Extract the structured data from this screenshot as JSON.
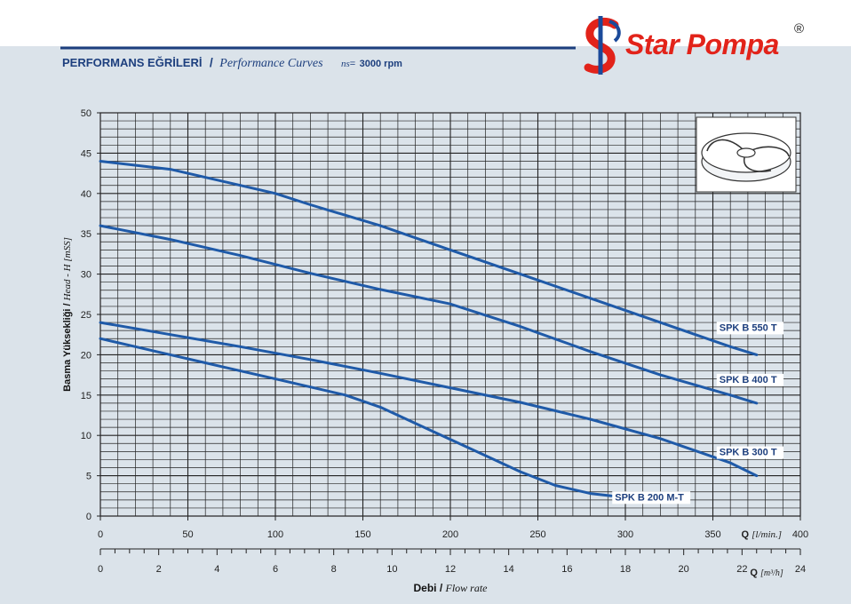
{
  "header": {
    "title_tr": "PERFORMANS EĞRİLERİ",
    "separator": "/",
    "title_en": "Performance Curves",
    "ns_label": "ns",
    "ns_eq": "=",
    "ns_value": "3000 rpm"
  },
  "brand": {
    "name": "Star Pompa",
    "registered": "®",
    "colors": {
      "primary": "#e2231a",
      "secondary": "#1b4a9a"
    }
  },
  "colors": {
    "curve": "#1f5aa8",
    "text": "#1d3f7e",
    "grid": "#222222"
  },
  "chart_data": {
    "type": "line",
    "ylabel_tr": "Basma Yüksekliği",
    "ylabel_sep": "/",
    "ylabel_en": "Head - H [mSS]",
    "xlabel_tr": "Debi",
    "xlabel_sep": "/",
    "xlabel_en": "Flow rate",
    "x_primary_unit_q": "Q",
    "x_primary_unit": "[l/min.]",
    "x_secondary_unit_q": "Q",
    "x_secondary_unit": "[m³/h]",
    "xlim": [
      0,
      400
    ],
    "ylim": [
      0,
      50
    ],
    "x_ticks": [
      0,
      50,
      100,
      150,
      200,
      250,
      300,
      350,
      400
    ],
    "x_ticks_labels": [
      "0",
      "50",
      "100",
      "150",
      "200",
      "250",
      "300",
      "350",
      "400"
    ],
    "y_ticks": [
      0,
      5,
      10,
      15,
      20,
      25,
      30,
      35,
      40,
      45,
      50
    ],
    "y_ticks_labels": [
      "0",
      "5",
      "10",
      "15",
      "20",
      "25",
      "30",
      "35",
      "40",
      "45",
      "50"
    ],
    "x2lim": [
      0,
      24
    ],
    "x2_ticks": [
      0,
      2,
      4,
      6,
      8,
      10,
      12,
      14,
      16,
      18,
      20,
      22,
      24
    ],
    "x2_ticks_labels": [
      "0",
      "2",
      "4",
      "6",
      "8",
      "10",
      "12",
      "14",
      "16",
      "18",
      "20",
      "22",
      "24"
    ],
    "grid": true,
    "series": [
      {
        "name": "SPK B 550 T",
        "x": [
          0,
          40,
          80,
          100,
          120,
          160,
          200,
          240,
          280,
          320,
          360,
          375
        ],
        "y": [
          44,
          43,
          41,
          40,
          38.6,
          36,
          33,
          30,
          27,
          24,
          21,
          20
        ]
      },
      {
        "name": "SPK B 400 T",
        "x": [
          0,
          40,
          80,
          120,
          160,
          200,
          240,
          280,
          320,
          360,
          375
        ],
        "y": [
          36,
          34.3,
          32.3,
          30.1,
          28.1,
          26.3,
          23.5,
          20.4,
          17.5,
          15,
          14
        ]
      },
      {
        "name": "SPK B 300 T",
        "x": [
          0,
          40,
          80,
          120,
          160,
          200,
          240,
          280,
          320,
          360,
          375
        ],
        "y": [
          24,
          22.5,
          21,
          19.4,
          17.7,
          15.9,
          14.1,
          12,
          9.6,
          6.6,
          5
        ]
      },
      {
        "name": "SPK B 200 M-T",
        "x": [
          0,
          20,
          40,
          60,
          80,
          100,
          120,
          140,
          160,
          180,
          200,
          220,
          240,
          260,
          280,
          292
        ],
        "y": [
          22,
          21,
          20,
          19,
          18,
          17,
          16,
          15,
          13.5,
          11.5,
          9.5,
          7.5,
          5.5,
          3.8,
          2.8,
          2.5
        ]
      }
    ]
  }
}
